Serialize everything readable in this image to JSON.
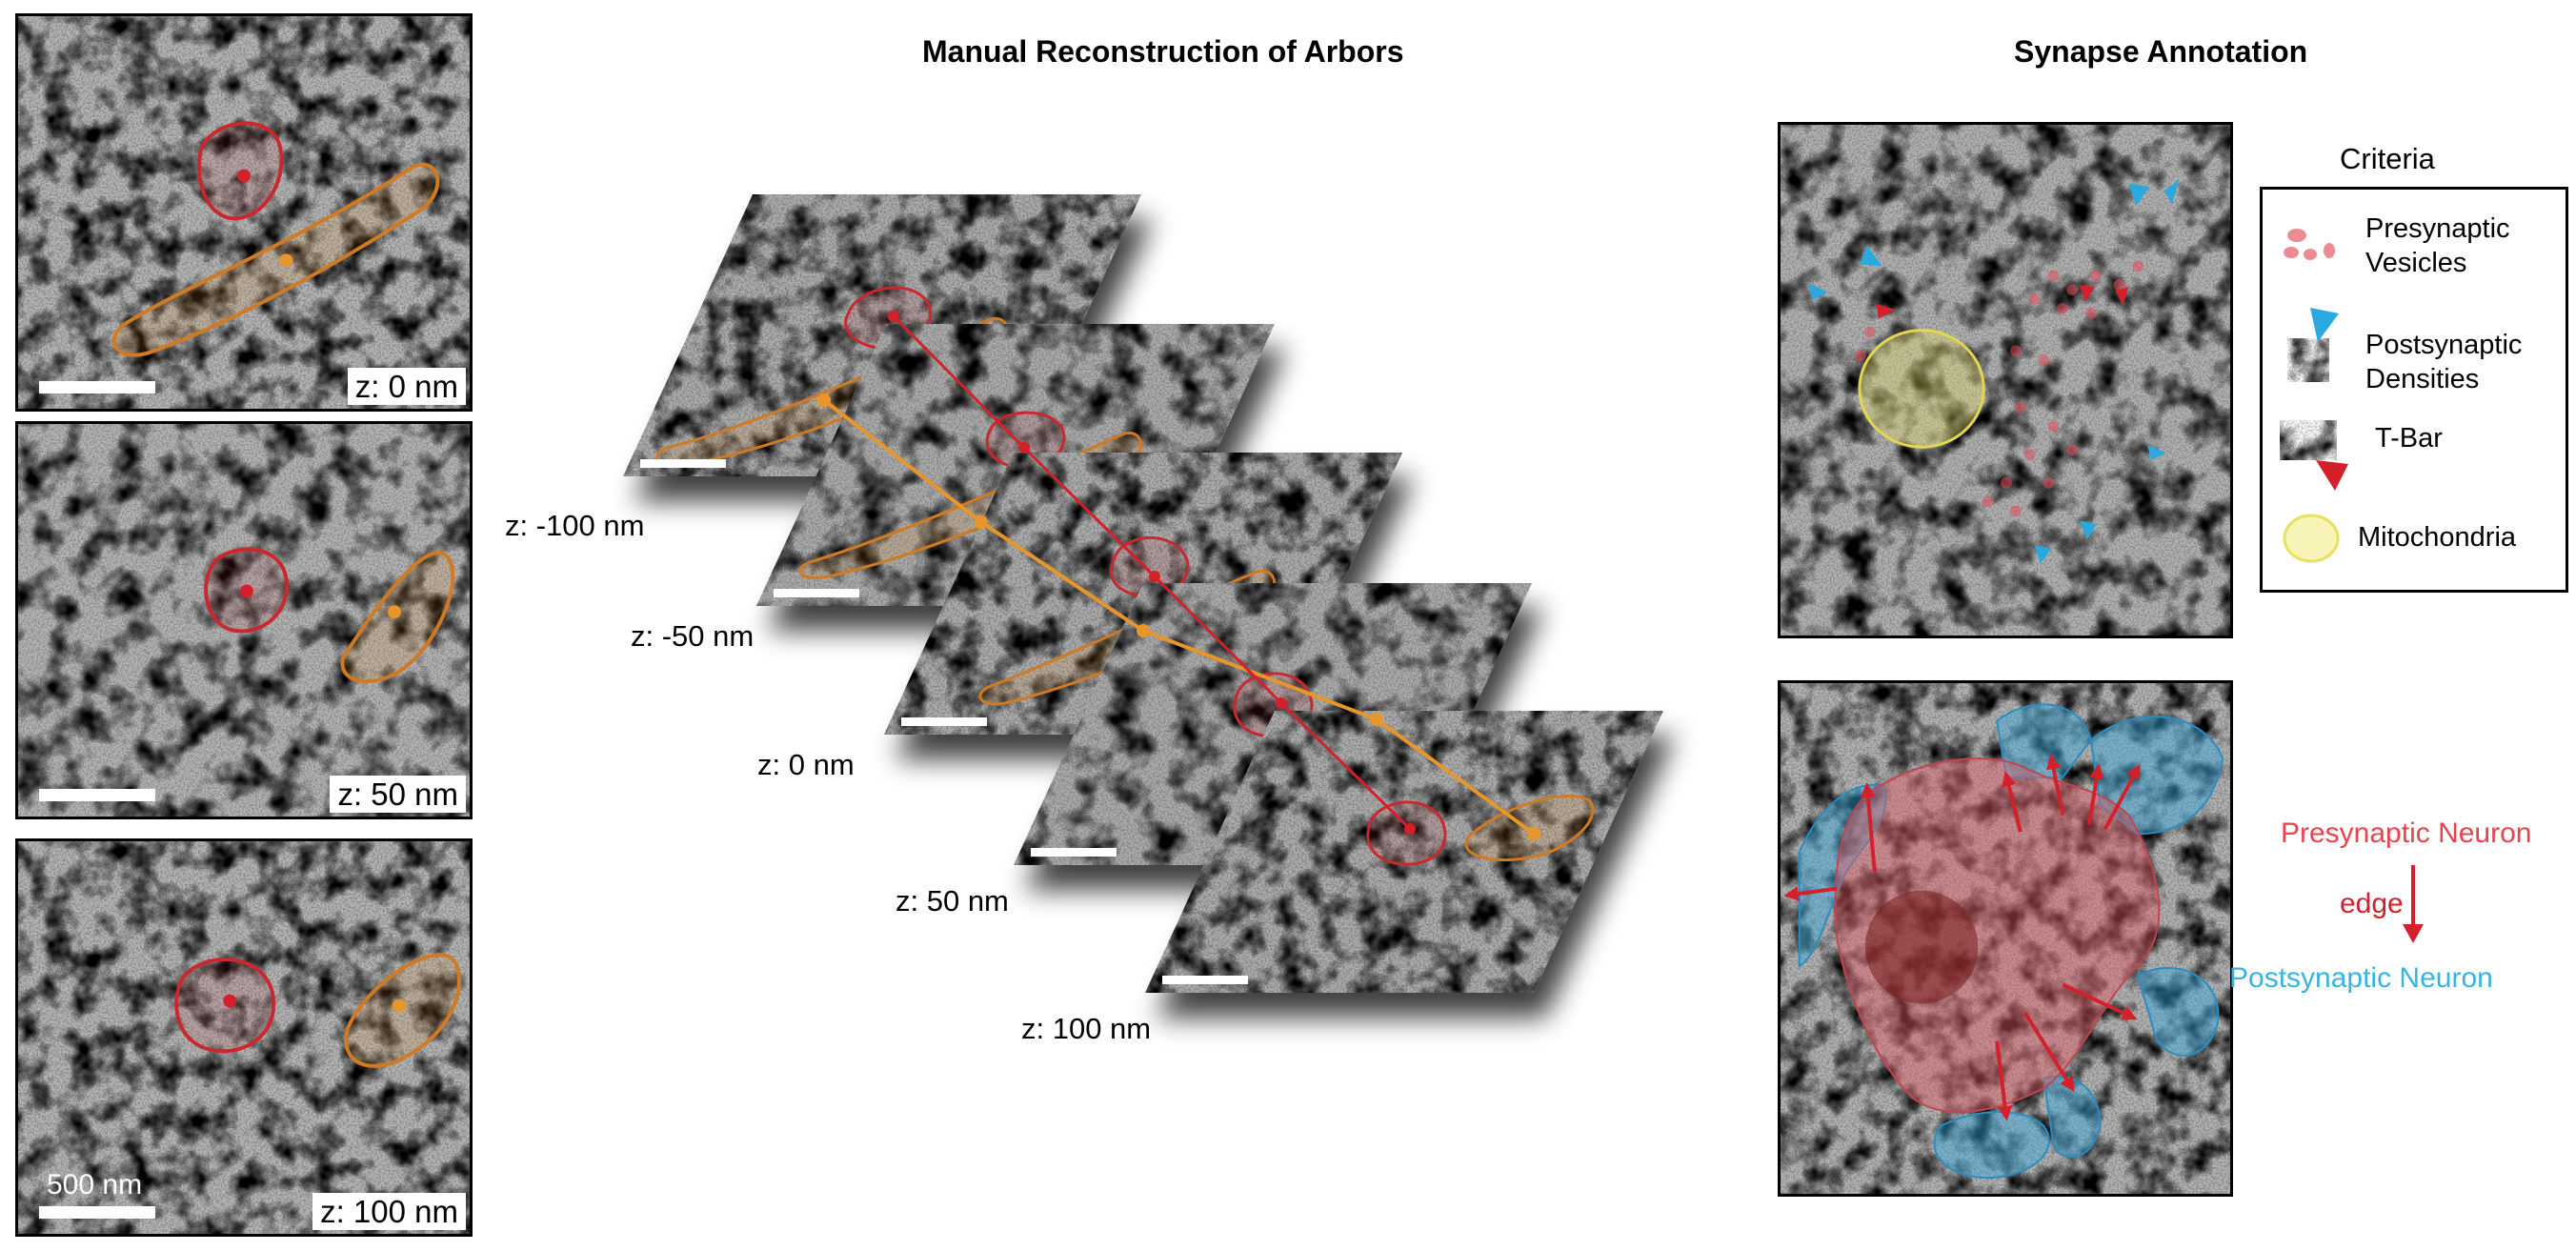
{
  "titles": {
    "manual": "Manual Reconstruction of Arbors",
    "synapse": "Synapse Annotation"
  },
  "left_panels": [
    {
      "z_label": "z: 0 nm"
    },
    {
      "z_label": "z: 50 nm"
    },
    {
      "z_label": "z: 100 nm",
      "scale_label": "500 nm"
    }
  ],
  "stack_labels": [
    "z: -100 nm",
    "z: -50 nm",
    "z: 0 nm",
    "z: 50 nm",
    "z: 100 nm"
  ],
  "legend": {
    "title": "Criteria",
    "items": [
      {
        "icon": "vesicles-icon",
        "label_line1": "Presynaptic",
        "label_line2": "Vesicles"
      },
      {
        "icon": "postsynaptic-density-icon",
        "label_line1": "Postsynaptic",
        "label_line2": "Densities"
      },
      {
        "icon": "t-bar-icon",
        "label_line1": "T-Bar",
        "label_line2": ""
      },
      {
        "icon": "mitochondria-icon",
        "label_line1": "Mitochondria",
        "label_line2": ""
      }
    ]
  },
  "edge_diagram": {
    "pre": "Presynaptic Neuron",
    "edge": "edge",
    "post": "Postsynaptic Neuron"
  },
  "colors": {
    "red": "#d4202a",
    "orange": "#e8962a",
    "cyan": "#2aa8e0",
    "pre_text": "#e8434f",
    "post_text": "#38b4e0",
    "mito": "#e8e060"
  }
}
